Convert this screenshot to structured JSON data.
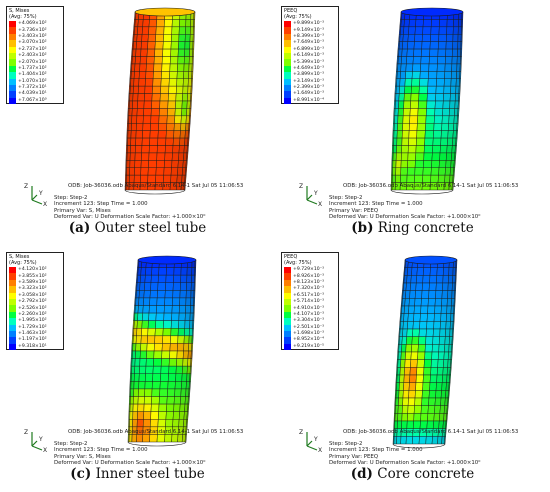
{
  "panels": [
    {
      "letter": "(a)",
      "caption": "Outer steel tube",
      "legend_title": "S, Mises",
      "legend_avg": "(Avg: 75%)",
      "legend_values": [
        "+4.069×10²",
        "+3.736×10²",
        "+3.403×10²",
        "+3.070×10²",
        "+2.737×10²",
        "+2.403×10²",
        "+2.070×10²",
        "+1.737×10²",
        "+1.404×10²",
        "+1.070×10²",
        "+7.372×10¹",
        "+4.039×10¹",
        "+7.067×10⁰"
      ],
      "odb_line": "ODB: Job-36036.odb    Abaqus/Standard 6.14-1    Sat Jul 05 11:06:53",
      "step_line": "Step: Step-2",
      "increment_line": "Increment    123: Step Time =    1.000",
      "primary_var_line": "Primary Var: S, Mises",
      "deformed_var_line": "Deformed Var: U    Deformation Scale Factor: +1.000×10⁰",
      "scheme": "steel_outer"
    },
    {
      "letter": "(b)",
      "caption": "Ring concrete",
      "legend_title": "PEEQ",
      "legend_avg": "(Avg: 75%)",
      "legend_values": [
        "+9.899×10⁻³",
        "+9.149×10⁻³",
        "+8.399×10⁻³",
        "+7.649×10⁻³",
        "+6.899×10⁻³",
        "+6.149×10⁻³",
        "+5.399×10⁻³",
        "+4.649×10⁻³",
        "+3.899×10⁻³",
        "+3.149×10⁻³",
        "+2.399×10⁻³",
        "+1.649×10⁻³",
        "+8.991×10⁻⁴"
      ],
      "odb_line": "ODB: Job-36036.odb    Abaqus/Standard 6.14-1    Sat Jul 05 11:06:53",
      "step_line": "Step: Step-2",
      "increment_line": "Increment    123: Step Time =    1.000",
      "primary_var_line": "Primary Var: PEEQ",
      "deformed_var_line": "Deformed Var: U    Deformation Scale Factor: +1.000×10⁰",
      "scheme": "ring"
    },
    {
      "letter": "(c)",
      "caption": "Inner steel tube",
      "legend_title": "S, Mises",
      "legend_avg": "(Avg: 75%)",
      "legend_values": [
        "+4.120×10²",
        "+3.855×10²",
        "+3.589×10²",
        "+3.323×10²",
        "+3.058×10²",
        "+2.792×10²",
        "+2.526×10²",
        "+2.260×10²",
        "+1.995×10²",
        "+1.729×10²",
        "+1.463×10²",
        "+1.197×10²",
        "+9.318×10¹"
      ],
      "odb_line": "ODB: Job-36036.odb    Abaqus/Standard 6.14-1    Sat Jul 05 11:06:53",
      "step_line": "Step: Step-2",
      "increment_line": "Increment    123: Step Time =    1.000",
      "primary_var_line": "Primary Var: S, Mises",
      "deformed_var_line": "Deformed Var: U    Deformation Scale Factor: +1.000×10⁰",
      "scheme": "steel_inner"
    },
    {
      "letter": "(d)",
      "caption": "Core concrete",
      "legend_title": "PEEQ",
      "legend_avg": "(Avg: 75%)",
      "legend_values": [
        "+9.729×10⁻³",
        "+8.926×10⁻³",
        "+8.123×10⁻³",
        "+7.320×10⁻³",
        "+6.517×10⁻³",
        "+5.714×10⁻³",
        "+4.910×10⁻³",
        "+4.107×10⁻³",
        "+3.304×10⁻³",
        "+2.501×10⁻³",
        "+1.698×10⁻³",
        "+8.952×10⁻⁴",
        "+9.219×10⁻⁵"
      ],
      "odb_line": "ODB: Job-36036.odb    Abaqus/Standard 6.14-1    Sat Jul 05 11:06:53",
      "step_line": "Step: Step-2",
      "increment_line": "Increment    123: Step Time =    1.000",
      "primary_var_line": "Primary Var: PEEQ",
      "deformed_var_line": "Deformed Var: U    Deformation Scale Factor: +1.000×10⁰",
      "scheme": "core"
    }
  ],
  "legend_colors": [
    "#ff0000",
    "#ff4000",
    "#ff7f00",
    "#ffbf00",
    "#ffff00",
    "#bfff00",
    "#7fff00",
    "#00ff40",
    "#00ffbf",
    "#00bfff",
    "#0080ff",
    "#0040ff",
    "#0000ff"
  ],
  "axis_labels": {
    "z": "Z",
    "y": "Y",
    "x": "X"
  }
}
